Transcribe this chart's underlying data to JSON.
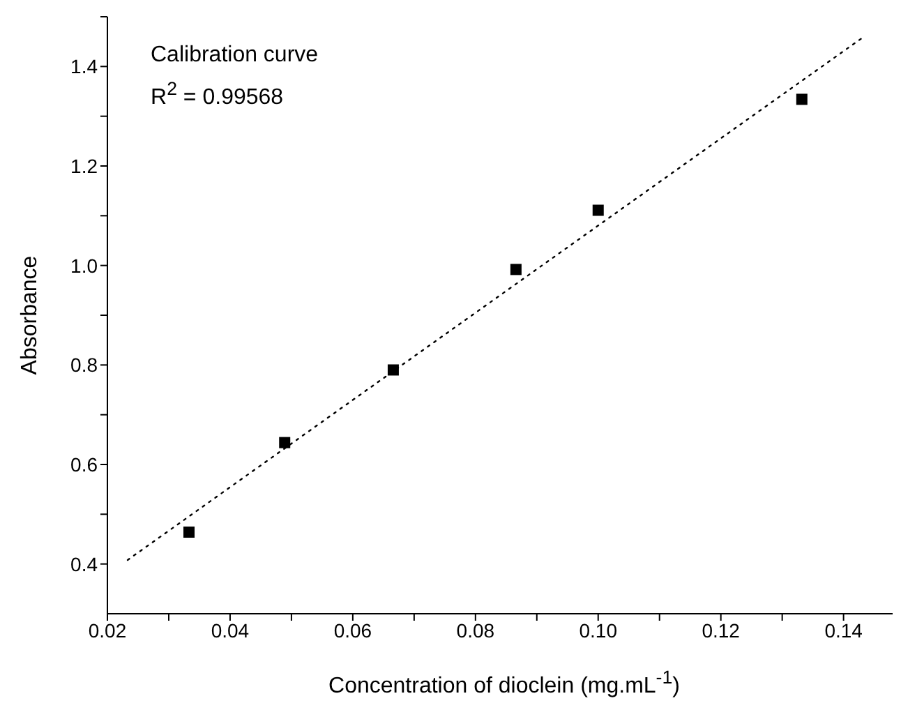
{
  "chart_data": {
    "type": "scatter",
    "xlabel": "Concentration of dioclein (mg.mL$^{-1}$)",
    "ylabel": "Absorbance",
    "annotations": [
      "Calibration curve",
      "R$^{2}$ = 0.99568"
    ],
    "x": [
      0.0333,
      0.0489,
      0.0666,
      0.0866,
      0.1,
      0.1332
    ],
    "series": [
      {
        "color": "#000000",
        "marker": "square",
        "values": [
          0.464,
          0.644,
          0.79,
          0.992,
          1.111,
          1.334
        ]
      },
      {
        "type": "line",
        "color": "#000000",
        "line_style": "dotted",
        "marker": "none",
        "x": [
          0.0233,
          0.1431
        ],
        "values": [
          0.408,
          1.458
        ]
      }
    ],
    "xlim": [
      0.02,
      0.148
    ],
    "xticks": [
      0.02,
      {
        "value": 0.03,
        "label": null
      },
      0.04,
      {
        "value": 0.05,
        "label": null
      },
      0.06,
      {
        "value": 0.07,
        "label": null
      },
      0.08,
      {
        "value": 0.09,
        "label": null
      },
      {
        "value": 0.1,
        "label": "0.10"
      },
      {
        "value": 0.11,
        "label": null
      },
      0.12,
      {
        "value": 0.13,
        "label": null
      },
      0.14
    ],
    "ylim": [
      0.3,
      1.5
    ],
    "yticks": [
      0.4,
      {
        "value": 0.5,
        "label": null
      },
      0.6,
      {
        "value": 0.7,
        "label": null
      },
      0.8,
      {
        "value": 0.9,
        "label": null
      },
      {
        "value": 1,
        "label": "1.0"
      },
      {
        "value": 1.1,
        "label": null
      },
      1.2,
      {
        "value": 1.3,
        "label": null
      },
      1.4,
      {
        "value": 1.5,
        "label": null
      }
    ],
    "grid": false
  }
}
